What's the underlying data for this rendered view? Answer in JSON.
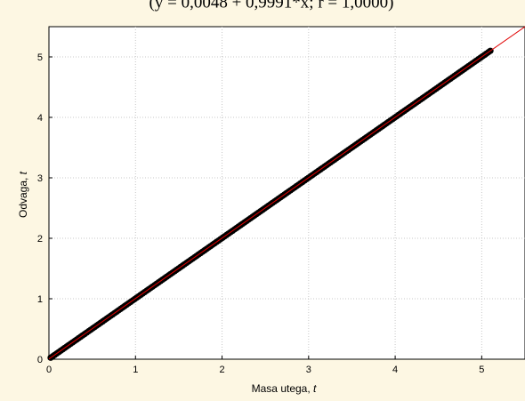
{
  "chart_data": {
    "type": "scatter",
    "title": "(y = 0,0048 + 0,9991*x; r = 1,0000)",
    "xlabel": "Masa utega, t",
    "ylabel": "Odvaga, t",
    "xlim": [
      0,
      5.5
    ],
    "ylim": [
      0,
      5.5
    ],
    "xticks": [
      "0",
      "1",
      "2",
      "3",
      "4",
      "5"
    ],
    "yticks": [
      "0",
      "1",
      "2",
      "3",
      "4",
      "5"
    ],
    "grid": true,
    "series": [
      {
        "kind": "points",
        "color": "#000000",
        "x_range": [
          0.02,
          5.1
        ],
        "description_values": {
          "x_start": 0.02,
          "x_end": 5.1
        }
      },
      {
        "kind": "regression-line",
        "color": "#e00000",
        "intercept": 0.0048,
        "slope": 0.9991
      }
    ]
  }
}
